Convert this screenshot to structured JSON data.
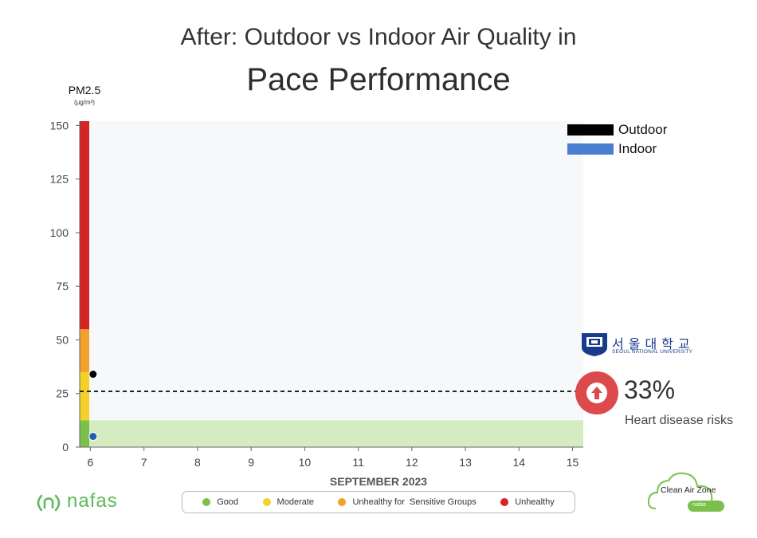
{
  "title_line1": "After: Outdoor vs Indoor Air Quality in",
  "title_line2": "Pace Performance",
  "y_axis_label": "PM2.5",
  "y_axis_unit": "(µg/m³)",
  "legend": [
    {
      "label": "Outdoor",
      "color": "#000000"
    },
    {
      "label": "Indoor",
      "color": "#4a7fd0"
    }
  ],
  "categories": [
    {
      "label": "Good",
      "color": "#7bc04d"
    },
    {
      "label": "Moderate",
      "color": "#f5cf2a"
    },
    {
      "label": "Unhealthy for  Sensitive Groups",
      "color": "#f2a02e"
    },
    {
      "label": "Unhealthy",
      "color": "#d42424"
    }
  ],
  "stat": {
    "percent": "33%",
    "caption": "Heart disease risks"
  },
  "logos": {
    "university_ko": "서울대학교",
    "university_en": "SEOUL NATIONAL UNIVERSITY",
    "nafas": "nafas",
    "clean_air": "Clean Air Zone",
    "clean_air_nafas": "nafas"
  },
  "chart_data": {
    "type": "scatter",
    "xlabel": "SEPTEMBER 2023",
    "ylabel": "PM2.5",
    "x_ticks": [
      6,
      7,
      8,
      9,
      10,
      11,
      12,
      13,
      14,
      15
    ],
    "y_ticks": [
      0,
      25,
      50,
      75,
      100,
      125,
      150
    ],
    "xlim": [
      5.8,
      15.2
    ],
    "ylim": [
      0,
      152
    ],
    "series": [
      {
        "name": "Outdoor",
        "color": "#000000",
        "points": [
          {
            "x": 6.05,
            "y": 34
          }
        ]
      },
      {
        "name": "Indoor",
        "color": "#1f5fb3",
        "points": [
          {
            "x": 6.05,
            "y": 5
          }
        ]
      }
    ],
    "reference_line": {
      "y": 26,
      "style": "dashed"
    },
    "good_band": {
      "y_min": 0,
      "y_max": 12.5,
      "color": "#d4ecc0"
    },
    "aqi_bands": [
      {
        "category": "Good",
        "y_min": 0,
        "y_max": 12.5,
        "color": "#7bc04d"
      },
      {
        "category": "Moderate",
        "y_min": 12.5,
        "y_max": 35,
        "color": "#f5cf2a"
      },
      {
        "category": "Unhealthy for Sensitive Groups",
        "y_min": 35,
        "y_max": 55,
        "color": "#f2a02e"
      },
      {
        "category": "Unhealthy",
        "y_min": 55,
        "y_max": 152,
        "color": "#d42424"
      }
    ],
    "plot_background": "#f7f8fa",
    "grid": false,
    "legend_position": "top-right"
  }
}
